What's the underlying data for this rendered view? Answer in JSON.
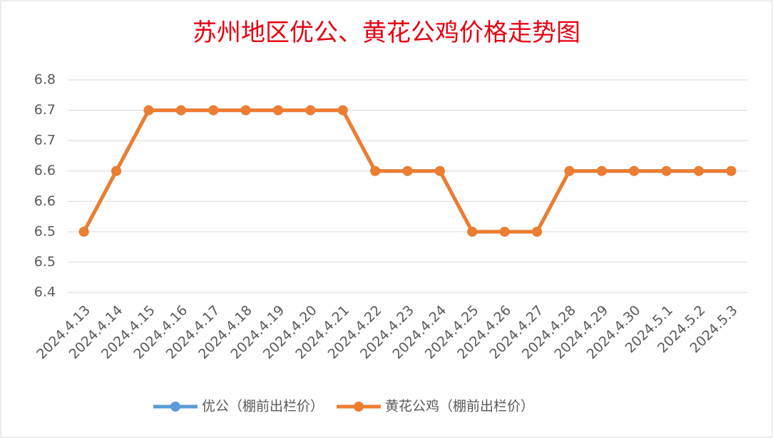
{
  "chart_data": {
    "type": "line",
    "title": "苏州地区优公、黄花公鸡价格走势图",
    "categories": [
      "2024.4.13",
      "2024.4.14",
      "2024.4.15",
      "2024.4.16",
      "2024.4.17",
      "2024.4.18",
      "2024.4.19",
      "2024.4.20",
      "2024.4.21",
      "2024.4.22",
      "2024.4.23",
      "2024.4.24",
      "2024.4.25",
      "2024.4.26",
      "2024.4.27",
      "2024.4.28",
      "2024.4.29",
      "2024.4.30",
      "2024.5.1",
      "2024.5.2",
      "2024.5.3"
    ],
    "series": [
      {
        "name": "优公（棚前出栏价）",
        "color": "#5b9bd5",
        "values": [
          6.5,
          6.6,
          6.7,
          6.7,
          6.7,
          6.7,
          6.7,
          6.7,
          6.7,
          6.6,
          6.6,
          6.6,
          6.5,
          6.5,
          6.5,
          6.6,
          6.6,
          6.6,
          6.6,
          6.6,
          6.6
        ]
      },
      {
        "name": "黄花公鸡（棚前出栏价）",
        "color": "#ed7d31",
        "values": [
          6.5,
          6.6,
          6.7,
          6.7,
          6.7,
          6.7,
          6.7,
          6.7,
          6.7,
          6.6,
          6.6,
          6.6,
          6.5,
          6.5,
          6.5,
          6.6,
          6.6,
          6.6,
          6.6,
          6.6,
          6.6
        ]
      }
    ],
    "ylim": [
      6.4,
      6.75
    ],
    "yticks": [
      6.4,
      {
        "value": 6.45,
        "label": "6.5"
      },
      6.5,
      {
        "value": 6.55,
        "label": "6.6"
      },
      6.6,
      {
        "value": 6.65,
        "label": "6.7"
      },
      6.7,
      {
        "value": 6.75,
        "label": "6.8"
      }
    ],
    "grid": true,
    "legend": "bottom"
  }
}
